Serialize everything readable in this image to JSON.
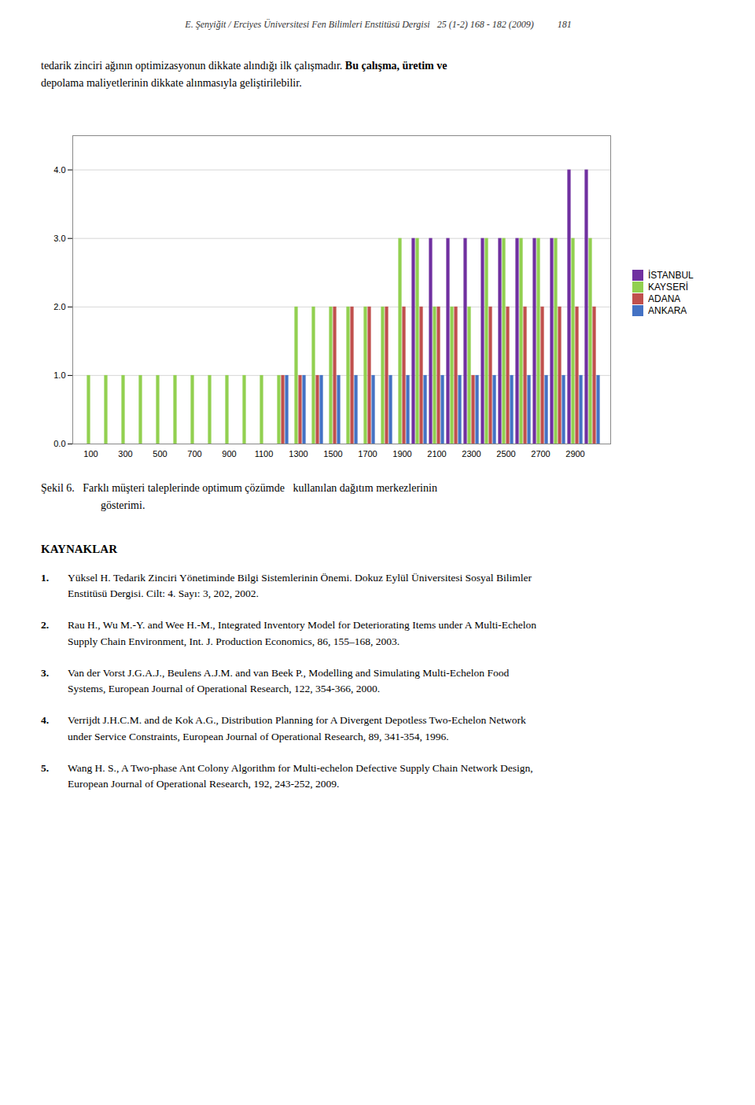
{
  "chart_data": {
    "type": "bar",
    "categories": [
      "100",
      null,
      "300",
      null,
      "500",
      null,
      "700",
      null,
      "900",
      null,
      "1100",
      null,
      "1300",
      null,
      "1500",
      null,
      "1700",
      null,
      "1900",
      null,
      "2100",
      null,
      "2300",
      null,
      "2500",
      null,
      "2700",
      null,
      "2900",
      null
    ],
    "series": [
      {
        "name": "İSTANBUL",
        "color": "#7030A0",
        "values": [
          0,
          0,
          0,
          0,
          0,
          0,
          0,
          0,
          0,
          0,
          0,
          0,
          0,
          0,
          0,
          0,
          0,
          0,
          0,
          3,
          3,
          3,
          3,
          3,
          3,
          3,
          3,
          3,
          4,
          4
        ]
      },
      {
        "name": "KAYSERİ",
        "color": "#92D050",
        "values": [
          1,
          1,
          1,
          1,
          1,
          1,
          1,
          1,
          1,
          1,
          1,
          1,
          2,
          2,
          2,
          2,
          2,
          2,
          3,
          3,
          2,
          2,
          2,
          3,
          3,
          3,
          3,
          3,
          3,
          3
        ]
      },
      {
        "name": "ADANA",
        "color": "#C0504D",
        "values": [
          0,
          0,
          0,
          0,
          0,
          0,
          0,
          0,
          0,
          0,
          0,
          1,
          1,
          1,
          2,
          2,
          2,
          2,
          2,
          2,
          2,
          2,
          1,
          2,
          2,
          2,
          2,
          2,
          2,
          2
        ]
      },
      {
        "name": "ANKARA",
        "color": "#4472C4",
        "values": [
          0,
          0,
          0,
          0,
          0,
          0,
          0,
          0,
          0,
          0,
          0,
          1,
          1,
          1,
          1,
          1,
          1,
          1,
          1,
          1,
          1,
          1,
          1,
          1,
          1,
          1,
          1,
          1,
          1,
          1
        ]
      }
    ],
    "ylim": [
      0,
      4.5
    ],
    "yticks": [
      0,
      1,
      2,
      3,
      4
    ],
    "grid": true,
    "legend": "right",
    "caption": [
      "Şekil 6.   Farklı müşteri taleplerinde optimum çözümde   kullanılan dağıtım merkezlerinin",
      "gösterimi."
    ]
  },
  "page_text": {
    "header": "E. Şenyiğit / Erciyes Üniversitesi Fen Bilimleri Enstitüsü Dergisi   25 (1-2) 168 - 182 (2009)          181",
    "paragraph": [
      {
        "text": "tedarik zinciri ağının optimizasyonun dikkate alındığı ilk çalışmadır. ",
        "bold": "Bu çalışma, üretim ve"
      },
      {
        "text": "depolama maliyetlerinin dikkate alınmasıyla geliştirilebilir."
      }
    ],
    "heading": "KAYNAKLAR",
    "references": [
      {
        "number": "1.",
        "lines": [
          "Yüksel H. Tedarik Zinciri Yönetiminde Bilgi Sistemlerinin Önemi. Dokuz Eylül Üniversitesi Sosyal Bilimler",
          "Enstitüsü Dergisi. Cilt: 4. Sayı: 3, 202, 2002."
        ]
      },
      {
        "number": "2.",
        "lines": [
          "Rau H., Wu M.-Y. and Wee H.-M., Integrated Inventory Model for Deteriorating Items under A Multi-Echelon",
          "Supply Chain Environment, Int. J. Production Economics, 86, 155–168, 2003."
        ]
      },
      {
        "number": "3.",
        "lines": [
          "Van der Vorst J.G.A.J., Beulens A.J.M. and van Beek P., Modelling and Simulating Multi-Echelon Food",
          "Systems, European Journal of Operational Research, 122, 354-366, 2000."
        ]
      },
      {
        "number": "4.",
        "lines": [
          "Verrijdt J.H.C.M. and de Kok A.G., Distribution Planning for A Divergent Depotless Two-Echelon Network",
          "under Service Constraints, European Journal of Operational Research, 89, 341-354, 1996."
        ]
      },
      {
        "number": "5.",
        "lines": [
          "Wang H. S., A Two-phase Ant Colony Algorithm for Multi-echelon Defective Supply Chain Network Design,",
          "European Journal of Operational Research, 192, 243-252, 2009."
        ]
      }
    ]
  }
}
